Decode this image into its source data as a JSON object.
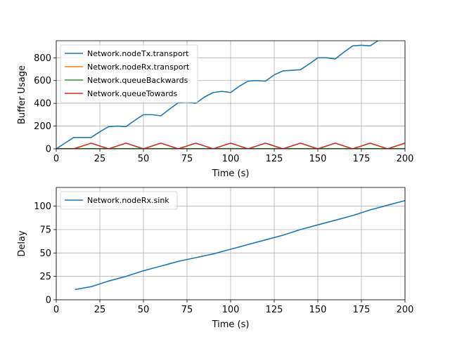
{
  "chart_data": [
    {
      "type": "line",
      "xlabel": "Time (s)",
      "ylabel": "Buffer Usage",
      "xlim": [
        0,
        200
      ],
      "ylim": [
        0,
        950
      ],
      "xticks": [
        0,
        25,
        50,
        75,
        100,
        125,
        150,
        175,
        200
      ],
      "yticks": [
        0,
        200,
        400,
        600,
        800
      ],
      "grid": true,
      "legend_position": "upper-left",
      "series": [
        {
          "name": "Network.nodeTx.transport",
          "color": "#1f77b4",
          "x": [
            0,
            5,
            10,
            15,
            20,
            25,
            30,
            35,
            40,
            45,
            50,
            55,
            60,
            65,
            70,
            75,
            80,
            85,
            90,
            95,
            100,
            105,
            110,
            115,
            120,
            125,
            130,
            135,
            140,
            145,
            150,
            155,
            160,
            165,
            170,
            175,
            180,
            185,
            190
          ],
          "y": [
            0,
            50,
            100,
            100,
            100,
            150,
            195,
            200,
            195,
            250,
            300,
            300,
            290,
            350,
            405,
            410,
            400,
            455,
            495,
            505,
            495,
            550,
            595,
            600,
            595,
            650,
            685,
            690,
            695,
            745,
            800,
            800,
            790,
            850,
            905,
            910,
            905,
            955,
            980
          ]
        },
        {
          "name": "Network.nodeRx.transport",
          "color": "#ff7f0e",
          "x": [
            0,
            200
          ],
          "y": [
            0,
            0
          ]
        },
        {
          "name": "Network.queueBackwards",
          "color": "#2ca02c",
          "x": [
            0,
            200
          ],
          "y": [
            2,
            2
          ]
        },
        {
          "name": "Network.queueTowards",
          "color": "#d62728",
          "x": [
            0,
            10,
            20,
            30,
            40,
            50,
            60,
            70,
            80,
            90,
            100,
            110,
            120,
            130,
            140,
            150,
            160,
            170,
            180,
            190,
            200
          ],
          "y": [
            0,
            0,
            50,
            0,
            50,
            0,
            50,
            0,
            50,
            0,
            50,
            0,
            50,
            0,
            50,
            0,
            50,
            0,
            50,
            0,
            50
          ]
        }
      ]
    },
    {
      "type": "line",
      "xlabel": "Time (s)",
      "ylabel": "Delay",
      "xlim": [
        0,
        200
      ],
      "ylim": [
        0,
        120
      ],
      "xticks": [
        0,
        25,
        50,
        75,
        100,
        125,
        150,
        175,
        200
      ],
      "yticks": [
        0,
        25,
        50,
        75,
        100
      ],
      "grid": true,
      "legend_position": "upper-left",
      "series": [
        {
          "name": "Network.nodeRx.sink",
          "color": "#1f77b4",
          "x": [
            11,
            20,
            30,
            40,
            50,
            60,
            70,
            80,
            90,
            100,
            110,
            120,
            130,
            140,
            150,
            160,
            170,
            180,
            190,
            200
          ],
          "y": [
            11,
            14,
            20,
            25,
            31,
            36,
            41,
            45,
            49,
            54,
            59,
            64,
            69,
            75,
            80,
            85,
            90,
            96,
            101,
            106
          ]
        }
      ]
    }
  ]
}
